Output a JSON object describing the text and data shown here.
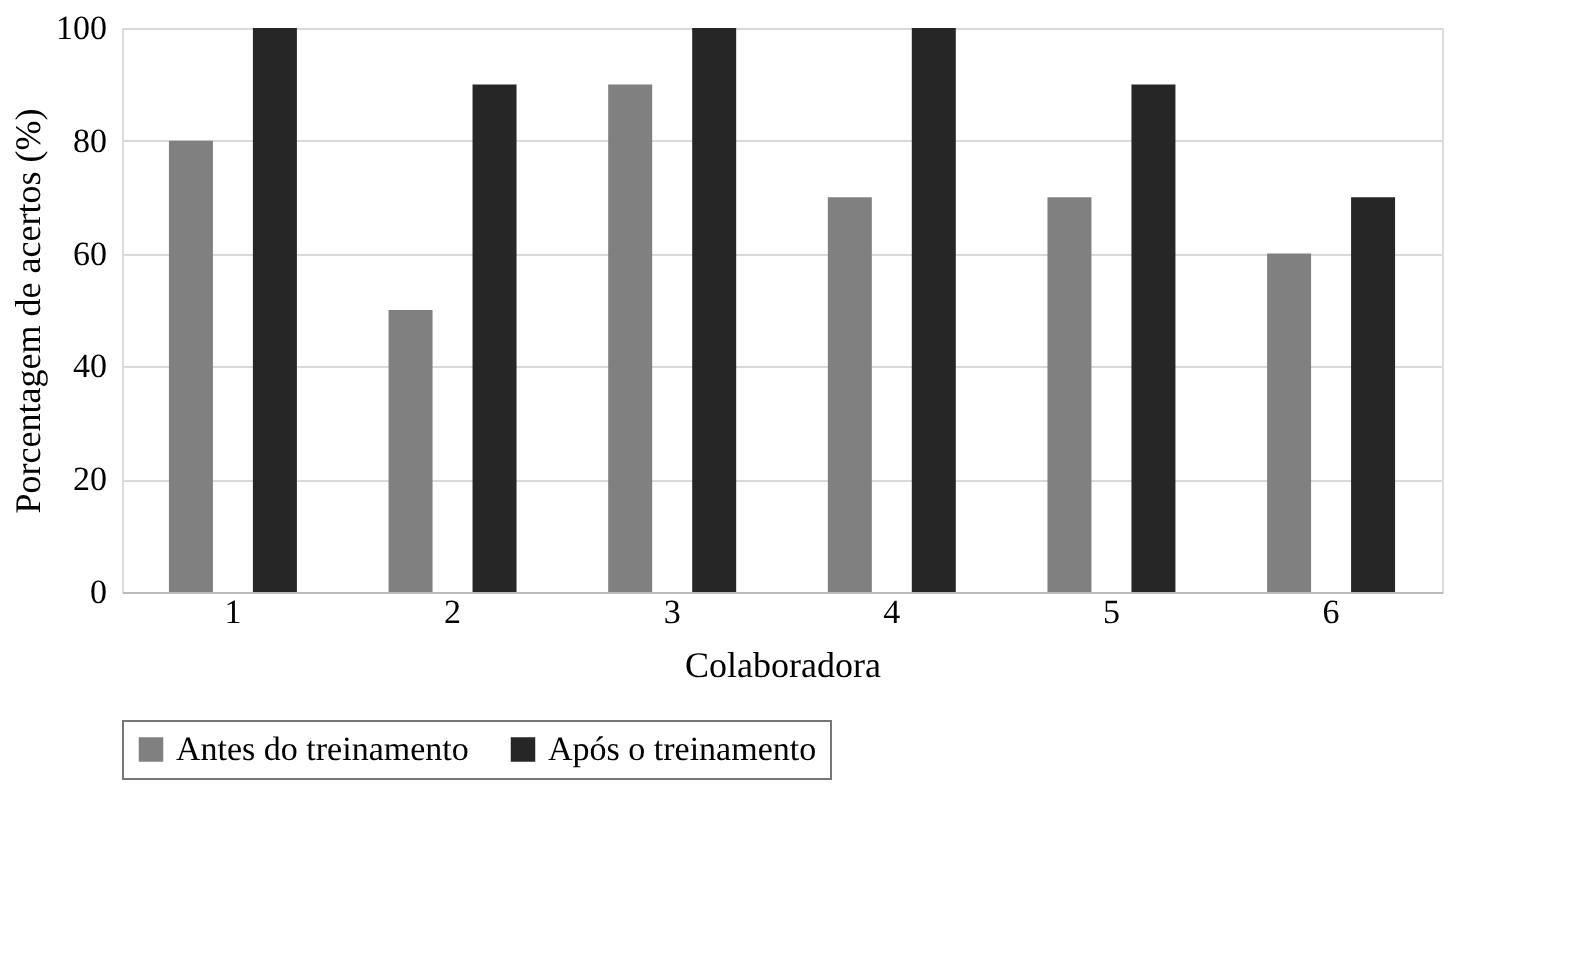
{
  "chart_data": {
    "type": "bar",
    "xlabel": "Colaboradora",
    "ylabel": "Porcentagem de acertos (%)",
    "categories": [
      "1",
      "2",
      "3",
      "4",
      "5",
      "6"
    ],
    "series": [
      {
        "name": "Antes do treinamento",
        "color": "#808080",
        "values": [
          80,
          50,
          90,
          70,
          70,
          60
        ]
      },
      {
        "name": "Após o treinamento",
        "color": "#262626",
        "values": [
          100,
          90,
          100,
          100,
          90,
          70
        ]
      }
    ],
    "ylim": [
      0,
      100
    ],
    "yticks": [
      0,
      20,
      40,
      60,
      80,
      100
    ],
    "grid": "y",
    "legend": "bottom"
  }
}
